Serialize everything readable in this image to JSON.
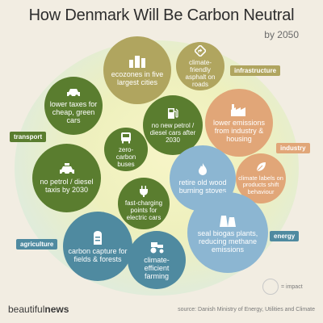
{
  "header": {
    "title": "How Denmark Will Be Carbon Neutral",
    "subtitle": "by 2050"
  },
  "categories": {
    "infrastructure": "infrastructure",
    "transport": "transport",
    "industry": "industry",
    "agriculture": "agriculture",
    "energy": "energy"
  },
  "bubbles": [
    {
      "label": "ecozones in five largest cities",
      "category": "infrastructure",
      "icon": "city-buildings-icon",
      "color": "#b0a55f"
    },
    {
      "label": "climate-friendly asphalt on roads",
      "category": "infrastructure",
      "icon": "route-sign-icon",
      "color": "#b0a55f"
    },
    {
      "label": "lower taxes for cheap, green cars",
      "category": "transport",
      "icon": "car-icon",
      "color": "#5a7d2f"
    },
    {
      "label": "no new petrol / diesel cars after 2030",
      "category": "transport",
      "icon": "fuel-pump-icon",
      "color": "#5a7d2f"
    },
    {
      "label": "lower emissions from industry & housing",
      "category": "industry",
      "icon": "factory-icon",
      "color": "#e1a678"
    },
    {
      "label": "zero-carbon buses",
      "category": "transport",
      "icon": "bus-icon",
      "color": "#5a7d2f"
    },
    {
      "label": "no petrol / diesel taxis by 2030",
      "category": "transport",
      "icon": "taxi-icon",
      "color": "#5a7d2f"
    },
    {
      "label": "retire old wood burning stoves",
      "category": "energy",
      "icon": "flame-icon",
      "color": "#8cb6d2"
    },
    {
      "label": "climate labels on products shift behaviour",
      "category": "industry",
      "icon": "leaf-icon",
      "color": "#e1a678"
    },
    {
      "label": "fast-charging points for electric cars",
      "category": "transport",
      "icon": "charging-plug-icon",
      "color": "#5a7d2f"
    },
    {
      "label": "seal biogas plants, reducing methane emissions",
      "category": "energy",
      "icon": "cooling-towers-icon",
      "color": "#8cb6d2"
    },
    {
      "label": "carbon capture for fields & forests",
      "category": "agriculture",
      "icon": "silo-icon",
      "color": "#4f8aa0"
    },
    {
      "label": "climate-efficient farming",
      "category": "agriculture",
      "icon": "tractor-icon",
      "color": "#4f8aa0"
    }
  ],
  "legend": {
    "text": "= impact"
  },
  "footer": {
    "brand_light": "beautiful",
    "brand_bold": "news",
    "source": "source: Danish Ministry of Energy, Utilities and Climate"
  },
  "colors": {
    "infrastructure": "#b0a55f",
    "transport": "#5a7d2f",
    "industry": "#e1a678",
    "agriculture": "#4f8aa0",
    "energy": "#8cb6d2"
  }
}
